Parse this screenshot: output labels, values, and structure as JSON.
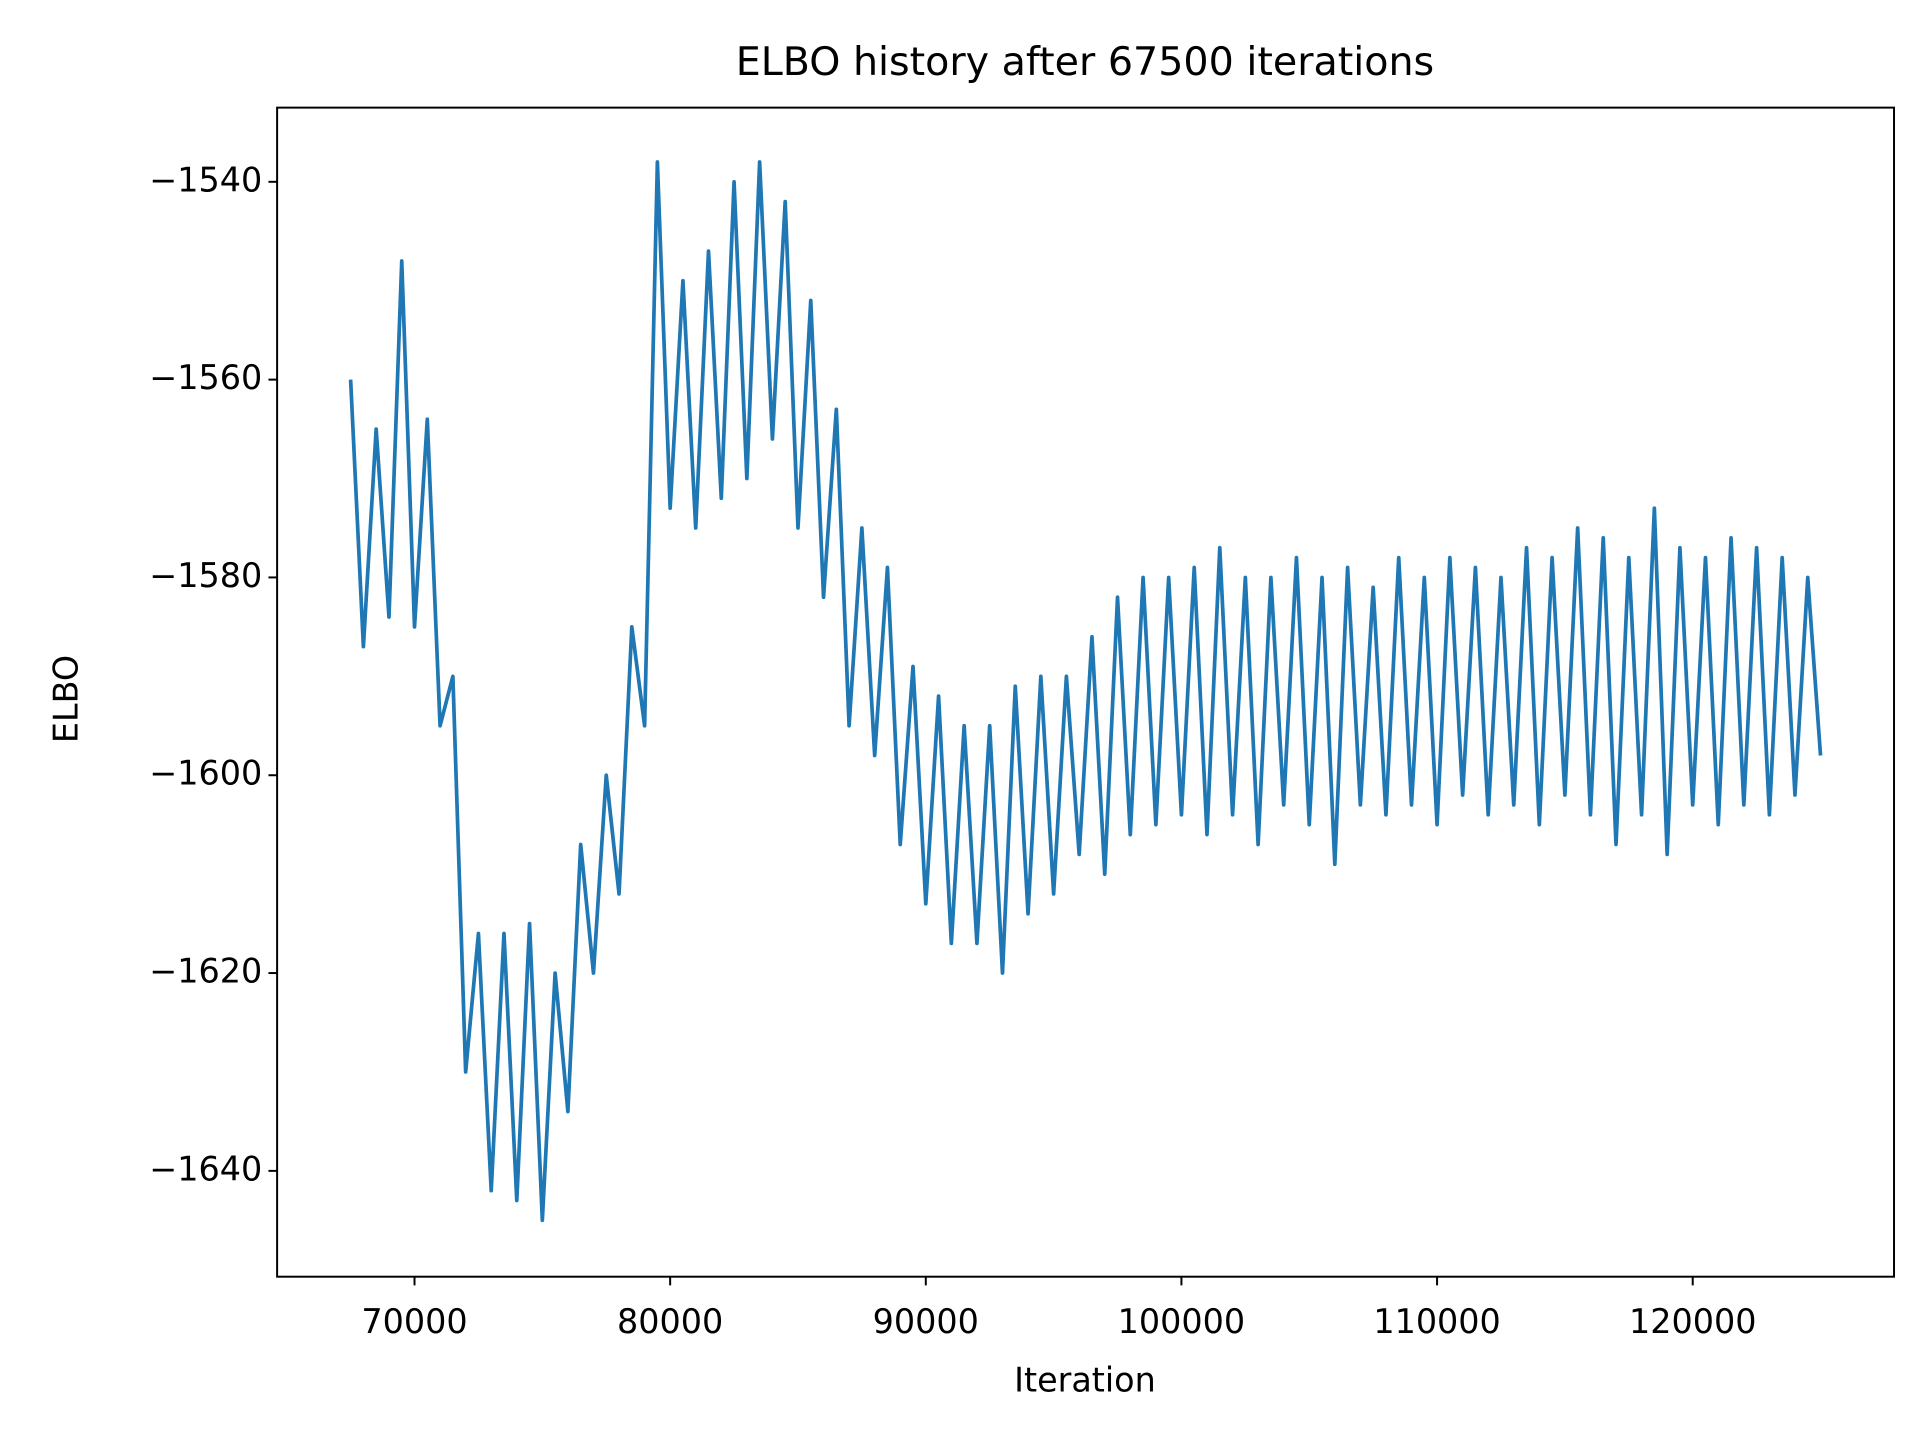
{
  "chart_data": {
    "type": "line",
    "title": "ELBO history after 67500 iterations",
    "x_label": "Iteration",
    "y_label": "ELBO",
    "color": "#1f77b4",
    "grid": false,
    "xlim": [
      64625,
      127875
    ],
    "xticks": [
      70000,
      80000,
      90000,
      100000,
      110000,
      120000
    ],
    "ylim": [
      -1650.7,
      -1532.5
    ],
    "yticks": [
      {
        "value": -1640,
        "label": "−1640"
      },
      {
        "value": -1620,
        "label": "−1620"
      },
      {
        "value": -1600,
        "label": "−1600"
      },
      {
        "value": -1580,
        "label": "−1580"
      },
      {
        "value": -1560,
        "label": "−1560"
      },
      {
        "value": -1540,
        "label": "−1540"
      }
    ],
    "x": [
      67500,
      68000,
      68500,
      69000,
      69500,
      70000,
      70500,
      71000,
      71500,
      72000,
      72500,
      73000,
      73500,
      74000,
      74500,
      75000,
      75500,
      76000,
      76500,
      77000,
      77500,
      78000,
      78500,
      79000,
      79500,
      80000,
      80500,
      81000,
      81500,
      82000,
      82500,
      83000,
      83500,
      84000,
      84500,
      85000,
      85500,
      86000,
      86500,
      87000,
      87500,
      88000,
      88500,
      89000,
      89500,
      90000,
      90500,
      91000,
      91500,
      92000,
      92500,
      93000,
      93500,
      94000,
      94500,
      95000,
      95500,
      96000,
      96500,
      97000,
      97500,
      98000,
      98500,
      99000,
      99500,
      100000,
      100500,
      101000,
      101500,
      102000,
      102500,
      103000,
      103500,
      104000,
      104500,
      105000,
      105500,
      106000,
      106500,
      107000,
      107500,
      108000,
      108500,
      109000,
      109500,
      110000,
      110500,
      111000,
      111500,
      112000,
      112500,
      113000,
      113500,
      114000,
      114500,
      115000,
      115500,
      116000,
      116500,
      117000,
      117500,
      118000,
      118500,
      119000,
      119500,
      120000,
      120500,
      121000,
      121500,
      122000,
      122500,
      123000,
      123500,
      124000,
      124500,
      125000
    ],
    "values": [
      -1560,
      -1587,
      -1565,
      -1584,
      -1548,
      -1585,
      -1564,
      -1595,
      -1590,
      -1630,
      -1616,
      -1642,
      -1616,
      -1643,
      -1615,
      -1645,
      -1620,
      -1634,
      -1607,
      -1620,
      -1600,
      -1612,
      -1585,
      -1595,
      -1538,
      -1573,
      -1550,
      -1575,
      -1547,
      -1572,
      -1540,
      -1570,
      -1538,
      -1566,
      -1542,
      -1575,
      -1552,
      -1582,
      -1563,
      -1595,
      -1575,
      -1598,
      -1579,
      -1607,
      -1589,
      -1613,
      -1592,
      -1617,
      -1595,
      -1617,
      -1595,
      -1620,
      -1591,
      -1614,
      -1590,
      -1612,
      -1590,
      -1608,
      -1586,
      -1610,
      -1582,
      -1606,
      -1580,
      -1605,
      -1580,
      -1604,
      -1579,
      -1606,
      -1577,
      -1604,
      -1580,
      -1607,
      -1580,
      -1603,
      -1578,
      -1605,
      -1580,
      -1609,
      -1579,
      -1603,
      -1581,
      -1604,
      -1578,
      -1603,
      -1580,
      -1605,
      -1578,
      -1602,
      -1579,
      -1604,
      -1580,
      -1603,
      -1577,
      -1605,
      -1578,
      -1602,
      -1575,
      -1604,
      -1576,
      -1607,
      -1578,
      -1604,
      -1573,
      -1608,
      -1577,
      -1603,
      -1578,
      -1605,
      -1576,
      -1603,
      -1577,
      -1604,
      -1578,
      -1602,
      -1580,
      -1598
    ]
  }
}
